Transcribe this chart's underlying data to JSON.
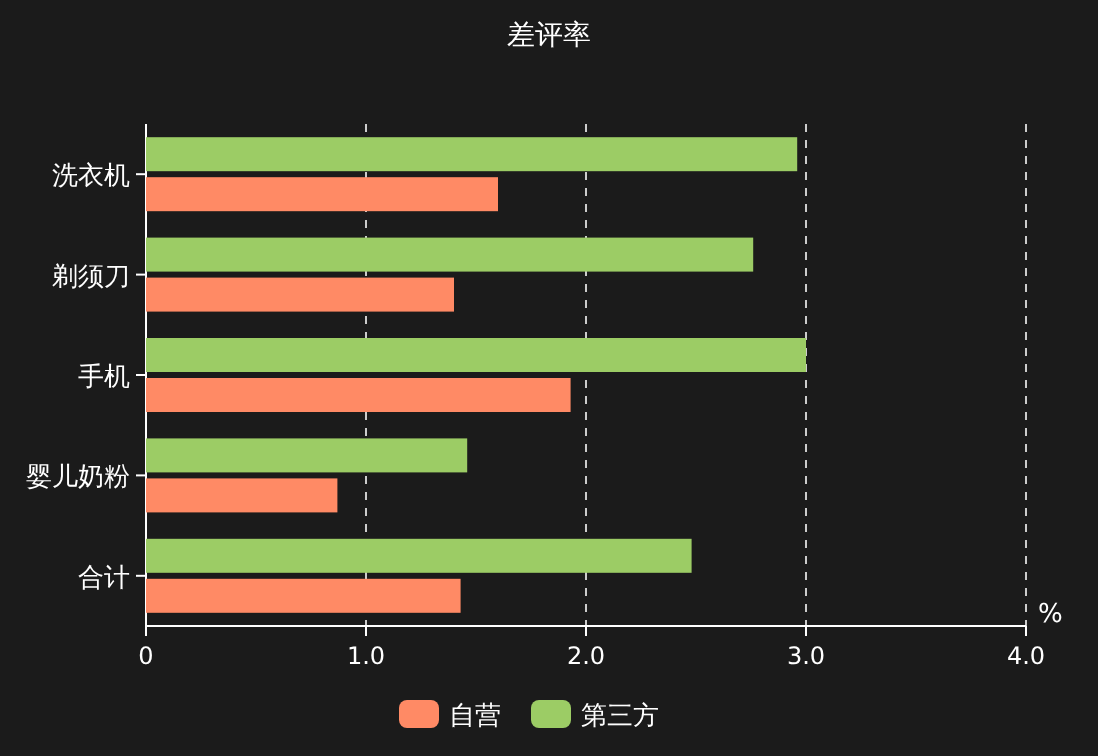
{
  "chart_data": {
    "type": "bar",
    "orientation": "horizontal",
    "title": "差评率",
    "xlabel": "%",
    "categories": [
      "洗衣机",
      "剃须刀",
      "手机",
      "婴儿奶粉",
      "合计"
    ],
    "series": [
      {
        "name": "自营",
        "color": "#ff8a65",
        "values": [
          1.6,
          1.4,
          1.93,
          0.87,
          1.43
        ]
      },
      {
        "name": "第三方",
        "color": "#9ccc65",
        "values": [
          2.96,
          2.76,
          3.0,
          1.46,
          2.48
        ]
      }
    ],
    "xlim": [
      0,
      4
    ],
    "xticks": [
      {
        "value": 0,
        "label": "0"
      },
      {
        "value": 1,
        "label": "1.0"
      },
      {
        "value": 2,
        "label": "2.0"
      },
      {
        "value": 3,
        "label": "3.0"
      },
      {
        "value": 4,
        "label": "4.0"
      }
    ],
    "grid": "x",
    "legend": "bottom"
  }
}
